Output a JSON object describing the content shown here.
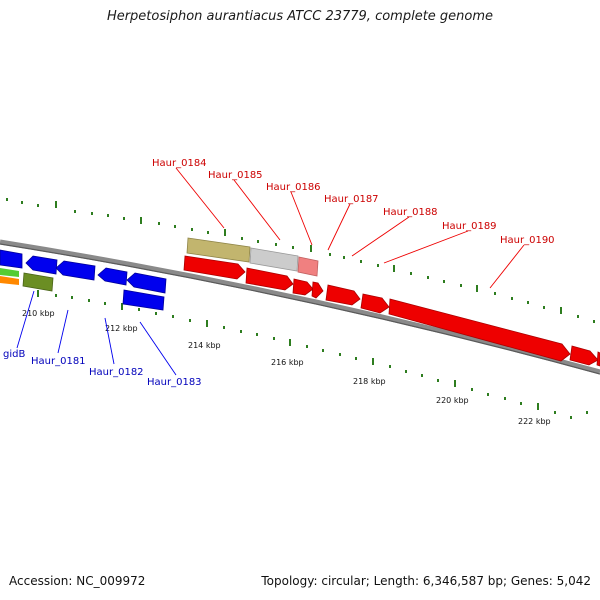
{
  "title": "Herpetosiphon aurantiacus ATCC 23779, complete genome",
  "footer": {
    "accession": "Accession: NC_009972",
    "meta": "Topology: circular; Length: 6,346,587 bp; Genes: 5,042"
  },
  "colors": {
    "forward_gene": "#ee0000",
    "reverse_gene": "#0000ee",
    "backbone": "#8a8a8a",
    "tick": "#2e7d1f",
    "forward_label": "#cc0000",
    "reverse_label": "#0000bb"
  },
  "scale": {
    "ticks": [
      {
        "label": "210 kbp"
      },
      {
        "label": "212 kbp"
      },
      {
        "label": "214 kbp"
      },
      {
        "label": "216 kbp"
      },
      {
        "label": "218 kbp"
      },
      {
        "label": "220 kbp"
      },
      {
        "label": "222 kbp"
      }
    ]
  },
  "labels": {
    "forward": [
      "Haur_0184",
      "Haur_0185",
      "Haur_0186",
      "Haur_0187",
      "Haur_0188",
      "Haur_0189",
      "Haur_0190"
    ],
    "reverse": [
      "gidB",
      "Haur_0181",
      "Haur_0182",
      "Haur_0183"
    ]
  }
}
